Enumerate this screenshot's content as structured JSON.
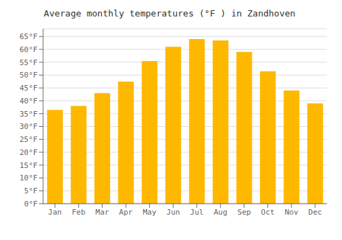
{
  "chart_data": {
    "type": "bar",
    "title": "Average monthly temperatures (°F ) in Zandhoven",
    "categories": [
      "Jan",
      "Feb",
      "Mar",
      "Apr",
      "May",
      "Jun",
      "Jul",
      "Aug",
      "Sep",
      "Oct",
      "Nov",
      "Dec"
    ],
    "values": [
      36.5,
      38.0,
      43.0,
      47.5,
      55.5,
      61.0,
      64.0,
      63.5,
      59.0,
      51.5,
      44.0,
      39.0
    ],
    "color": "#FFB800",
    "ylim": [
      0,
      68
    ],
    "yticks": [
      {
        "value": 0,
        "label": "0°F"
      },
      {
        "value": 5,
        "label": "5°F"
      },
      {
        "value": 10,
        "label": "10°F"
      },
      {
        "value": 15,
        "label": "15°F"
      },
      {
        "value": 20,
        "label": "20°F"
      },
      {
        "value": 25,
        "label": "25°F"
      },
      {
        "value": 30,
        "label": "30°F"
      },
      {
        "value": 35,
        "label": "35°F"
      },
      {
        "value": 40,
        "label": "40°F"
      },
      {
        "value": 45,
        "label": "45°F"
      },
      {
        "value": 50,
        "label": "50°F"
      },
      {
        "value": 55,
        "label": "55°F"
      },
      {
        "value": 60,
        "label": "60°F"
      },
      {
        "value": 65,
        "label": "65°F"
      }
    ],
    "grid": true
  }
}
